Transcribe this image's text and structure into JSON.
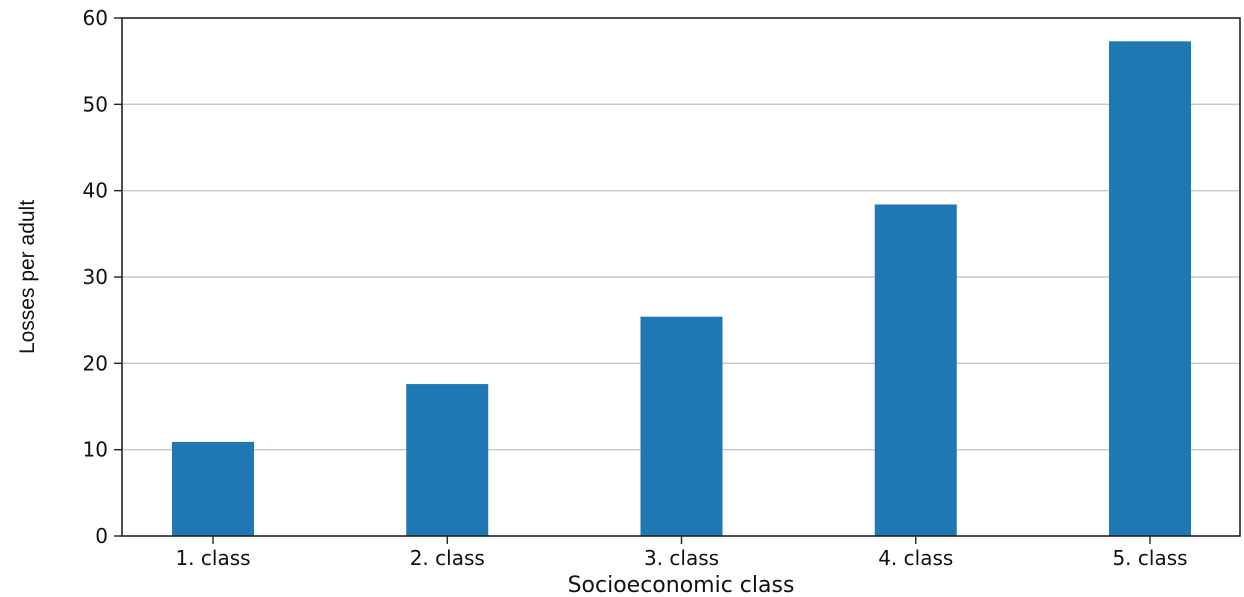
{
  "chart_data": {
    "type": "bar",
    "title": "",
    "xlabel": "Socioeconomic class",
    "ylabel": "Losses per adult",
    "categories": [
      "1. class",
      "2. class",
      "3. class",
      "4. class",
      "5. class"
    ],
    "values": [
      10.9,
      17.6,
      25.4,
      38.4,
      57.3
    ],
    "ylim": [
      0,
      60
    ],
    "yticks": [
      0,
      10,
      20,
      30,
      40,
      50,
      60
    ],
    "grid": "horizontal",
    "bar_color": "#1f77b4",
    "legend": "none"
  }
}
